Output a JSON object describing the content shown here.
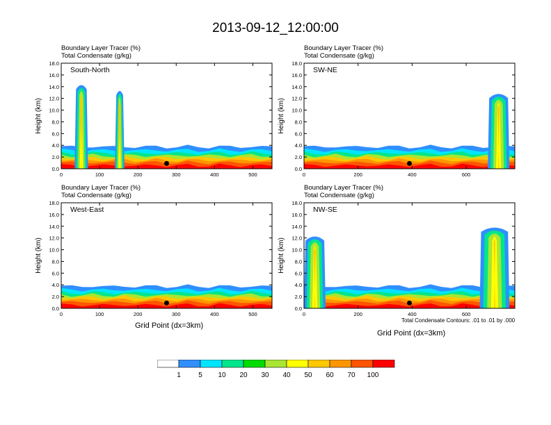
{
  "title": "2013-09-12_12:00:00",
  "labels": {
    "tracer": "Boundary Layer Tracer   (%)",
    "condensate": "Total Condensate   (g/kg)",
    "ylabel": "Height (km)",
    "xlabel": "Grid Point (dx=3km)",
    "contour_note": "Total Condensate Contours: .01 to .01 by .000",
    "contour_label": ".01"
  },
  "colors": {
    "scale": [
      "#ffffff",
      "#2f8fff",
      "#00e5ff",
      "#00e68c",
      "#00dc00",
      "#a8e632",
      "#ffff00",
      "#ffc800",
      "#ff9600",
      "#ff5500",
      "#ff0000"
    ],
    "text": "#000000"
  },
  "legend": {
    "ticks": [
      "1",
      "5",
      "10",
      "20",
      "30",
      "40",
      "50",
      "60",
      "70",
      "100"
    ]
  },
  "chart_data": [
    {
      "type": "heatmap",
      "name": "South-North",
      "title": "South-North",
      "xlabel": "",
      "ylabel": "Height (km)",
      "xlim": [
        0,
        550
      ],
      "ylim": [
        0,
        18
      ],
      "xticks": [
        "0",
        "100",
        "200",
        "300",
        "400",
        "500"
      ],
      "yticks": [
        "0.0",
        "2.0",
        "4.0",
        "6.0",
        "8.0",
        "10.0",
        "12.0",
        "14.0",
        "16.0",
        "18.0"
      ],
      "marker_x": 275,
      "marker_label": "",
      "plumes": [
        [
          35,
          70,
          14.5
        ],
        [
          140,
          165,
          13.5
        ]
      ]
    },
    {
      "type": "heatmap",
      "name": "SW-NE",
      "title": "SW-NE",
      "xlabel": "",
      "ylabel": "Height (km)",
      "xlim": [
        0,
        780
      ],
      "ylim": [
        0,
        18
      ],
      "xticks": [
        "0",
        "200",
        "400",
        "600"
      ],
      "yticks": [
        "0.0",
        "2.0",
        "4.0",
        "6.0",
        "8.0",
        "10.0",
        "12.0",
        "14.0",
        "16.0",
        "18.0"
      ],
      "marker_x": 390,
      "plumes": [
        [
          680,
          760,
          13
        ]
      ]
    },
    {
      "type": "heatmap",
      "name": "West-East",
      "title": "West-East",
      "xlabel": "Grid Point (dx=3km)",
      "ylabel": "Height (km)",
      "xlim": [
        0,
        550
      ],
      "ylim": [
        0,
        18
      ],
      "xticks": [
        "0",
        "100",
        "200",
        "300",
        "400",
        "500"
      ],
      "yticks": [
        "0.0",
        "2.0",
        "4.0",
        "6.0",
        "8.0",
        "10.0",
        "12.0",
        "14.0",
        "16.0",
        "18.0"
      ],
      "marker_x": 275,
      "plumes": []
    },
    {
      "type": "heatmap",
      "name": "NW-SE",
      "title": "NW-SE",
      "xlabel": "Grid Point (dx=3km)",
      "ylabel": "Height (km)",
      "xlim": [
        0,
        780
      ],
      "ylim": [
        0,
        18
      ],
      "xticks": [
        "0",
        "200",
        "400",
        "600"
      ],
      "yticks": [
        "0.0",
        "2.0",
        "4.0",
        "6.0",
        "8.0",
        "10.0",
        "12.0",
        "14.0",
        "16.0",
        "18.0"
      ],
      "marker_x": 390,
      "plumes": [
        [
          0,
          80,
          12.5
        ],
        [
          650,
          760,
          14
        ]
      ]
    }
  ]
}
